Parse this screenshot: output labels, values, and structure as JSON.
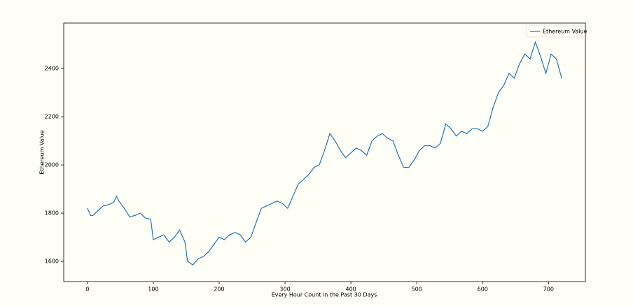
{
  "chart_data": {
    "type": "line",
    "xlabel": "Every Hour Count in the Past 30 Days",
    "ylabel": "Ethereum Value",
    "x": [
      0,
      5,
      8,
      16,
      24,
      32,
      40,
      44,
      48,
      56,
      64,
      72,
      80,
      88,
      96,
      100,
      108,
      116,
      124,
      132,
      140,
      148,
      152,
      160,
      168,
      176,
      184,
      192,
      200,
      208,
      216,
      224,
      232,
      240,
      248,
      256,
      264,
      272,
      280,
      288,
      296,
      304,
      312,
      320,
      328,
      336,
      344,
      352,
      360,
      368,
      376,
      384,
      392,
      400,
      408,
      416,
      424,
      432,
      440,
      448,
      456,
      464,
      472,
      480,
      488,
      496,
      504,
      512,
      520,
      528,
      536,
      544,
      552,
      560,
      568,
      576,
      584,
      592,
      600,
      608,
      616,
      624,
      632,
      640,
      648,
      656,
      664,
      672,
      680,
      688,
      696,
      704,
      712,
      720
    ],
    "series": [
      {
        "name": "Ethereum Value",
        "color": "#1f77b4",
        "values": [
          1820,
          1790,
          1790,
          1810,
          1830,
          1835,
          1845,
          1870,
          1850,
          1820,
          1785,
          1790,
          1800,
          1780,
          1775,
          1690,
          1700,
          1710,
          1680,
          1700,
          1730,
          1680,
          1600,
          1585,
          1610,
          1620,
          1640,
          1670,
          1700,
          1690,
          1710,
          1720,
          1710,
          1680,
          1700,
          1760,
          1820,
          1830,
          1840,
          1850,
          1840,
          1820,
          1870,
          1920,
          1940,
          1960,
          1990,
          2000,
          2060,
          2130,
          2100,
          2060,
          2030,
          2050,
          2070,
          2060,
          2040,
          2100,
          2120,
          2130,
          2110,
          2100,
          2040,
          1990,
          1990,
          2020,
          2060,
          2080,
          2080,
          2070,
          2090,
          2170,
          2150,
          2120,
          2140,
          2130,
          2150,
          2150,
          2140,
          2160,
          2240,
          2300,
          2330,
          2380,
          2360,
          2420,
          2460,
          2440,
          2510,
          2450,
          2380,
          2460,
          2440,
          2360
        ]
      }
    ],
    "xlim": [
      -36,
      756
    ],
    "ylim": [
      1516,
      2589
    ],
    "xticks": [
      0,
      100,
      200,
      300,
      400,
      500,
      600,
      700
    ],
    "yticks": [
      1600,
      1800,
      2000,
      2200,
      2400
    ],
    "legend": "upper right"
  }
}
